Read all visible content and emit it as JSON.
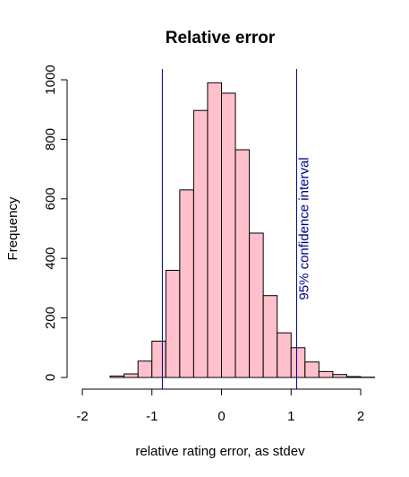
{
  "chart_data": {
    "type": "bar",
    "title": "Relative error",
    "xlabel": "relative rating error, as stdev",
    "ylabel": "Frequency",
    "xlim": [
      -2,
      2
    ],
    "ylim": [
      0,
      1000
    ],
    "x_ticks": [
      -2,
      -1,
      0,
      1,
      2
    ],
    "x_tick_labels": [
      "-2",
      "-1",
      "0",
      "1",
      "2"
    ],
    "y_ticks": [
      0,
      200,
      400,
      600,
      800,
      1000
    ],
    "y_tick_labels": [
      "0",
      "200",
      "400",
      "600",
      "800",
      "1000"
    ],
    "bin_edges": [
      -1.6,
      -1.4,
      -1.2,
      -1.0,
      -0.8,
      -0.6,
      -0.4,
      -0.2,
      0.0,
      0.2,
      0.4,
      0.6,
      0.8,
      1.0,
      1.2,
      1.4,
      1.6,
      1.8,
      2.0,
      2.2
    ],
    "values": [
      5,
      12,
      55,
      122,
      360,
      630,
      897,
      990,
      955,
      765,
      485,
      275,
      150,
      100,
      52,
      20,
      10,
      3,
      1
    ],
    "bar_fill": "#FFC0CB",
    "bar_stroke": "#000000",
    "reference_lines": [
      {
        "x": -0.85,
        "color": "#00008B"
      },
      {
        "x": 1.08,
        "color": "#00008B"
      }
    ],
    "annotation": {
      "text": "95% confidence interval",
      "color": "#00008B",
      "x": 1.3,
      "y": 500
    },
    "grid": false,
    "legend": "none"
  }
}
